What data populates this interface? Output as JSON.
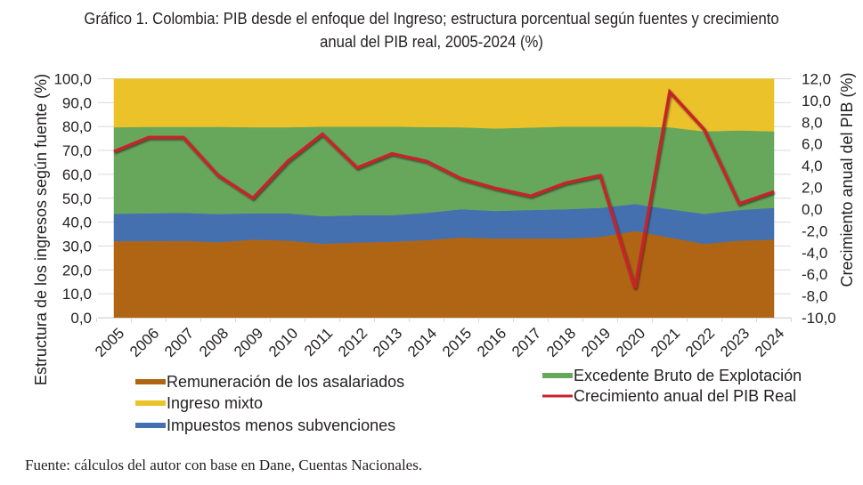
{
  "title": {
    "line1": "Gráfico 1. Colombia: PIB desde el enfoque del Ingreso; estructura porcentual según fuentes y crecimiento",
    "line2": "anual del PIB real, 2005-2024 (%)"
  },
  "source": "Fuente: cálculos del autor con base en Dane, Cuentas Nacionales.",
  "chart_data": {
    "type": "area",
    "title": "Gráfico 1. Colombia: PIB desde el enfoque del Ingreso; estructura porcentual según fuentes y crecimiento anual del PIB real, 2005-2024 (%)",
    "categories": [
      "2005",
      "2006",
      "2007",
      "2008",
      "2009",
      "2010",
      "2011",
      "2012",
      "2013",
      "2014",
      "2015",
      "2016",
      "2017",
      "2018",
      "2019",
      "2020",
      "2021",
      "2022",
      "2023",
      "2024"
    ],
    "ylabel": "Estructura de los ingresos según fuente (%)",
    "y2label": "Crecimiento anual del PIB (%)",
    "ylim": [
      0,
      100
    ],
    "y2lim": [
      -10,
      12
    ],
    "yticks": [
      "0,0",
      "10,0",
      "20,0",
      "30,0",
      "40,0",
      "50,0",
      "60,0",
      "70,0",
      "80,0",
      "90,0",
      "100,0"
    ],
    "y2ticks": [
      "-10,0",
      "-8,0",
      "-6,0",
      "-4,0",
      "-2,0",
      "0,0",
      "2,0",
      "4,0",
      "6,0",
      "8,0",
      "10,0",
      "12,0"
    ],
    "grid": true,
    "stacked": true,
    "series": [
      {
        "name": "Remuneración de los asalariados",
        "kind": "area",
        "axis": "left",
        "color": "#b06515",
        "values": [
          32.0,
          32.1,
          32.2,
          31.6,
          32.7,
          32.3,
          31.0,
          31.5,
          31.8,
          32.5,
          33.6,
          33.2,
          33.2,
          33.2,
          33.8,
          36.3,
          33.6,
          30.9,
          32.3,
          32.7
        ]
      },
      {
        "name": "Impuestos menos subvenciones",
        "kind": "area",
        "axis": "left",
        "color": "#4470b0",
        "values": [
          11.5,
          11.6,
          11.7,
          11.8,
          11.0,
          11.4,
          11.5,
          11.4,
          11.1,
          11.4,
          11.8,
          11.5,
          11.9,
          12.2,
          12.2,
          11.3,
          11.8,
          12.6,
          12.8,
          13.3
        ]
      },
      {
        "name": "Excedente Bruto de Explotación",
        "kind": "area",
        "axis": "left",
        "color": "#67a75c",
        "values": [
          36.2,
          36.2,
          36.0,
          36.5,
          36.0,
          36.0,
          37.5,
          37.1,
          37.1,
          35.9,
          34.3,
          34.5,
          34.5,
          34.6,
          34.0,
          32.4,
          34.3,
          34.5,
          33.3,
          32.0
        ]
      },
      {
        "name": "Ingreso mixto",
        "kind": "area",
        "axis": "left",
        "color": "#ebc22a",
        "values": [
          20.3,
          20.1,
          20.1,
          20.1,
          20.3,
          20.3,
          20.0,
          20.0,
          20.0,
          20.2,
          20.3,
          20.8,
          20.4,
          20.0,
          20.0,
          20.0,
          20.3,
          22.0,
          21.6,
          22.0
        ]
      },
      {
        "name": "Crecimiento anual del PIB Real",
        "kind": "line",
        "axis": "right",
        "color": "#c8202a",
        "values": [
          5.3,
          6.6,
          6.6,
          3.1,
          1.0,
          4.4,
          6.9,
          3.8,
          5.1,
          4.4,
          2.8,
          1.9,
          1.2,
          2.4,
          3.1,
          -7.3,
          10.8,
          7.3,
          0.5,
          1.6
        ]
      }
    ],
    "legend": {
      "placement": "bottom",
      "items": [
        {
          "label": "Remuneración de los asalariados",
          "color": "#b06515",
          "kind": "area"
        },
        {
          "label": "Ingreso mixto",
          "color": "#ebc22a",
          "kind": "area"
        },
        {
          "label": "Impuestos menos subvenciones",
          "color": "#4470b0",
          "kind": "area"
        },
        {
          "label": "Excedente Bruto de Explotación",
          "color": "#67a75c",
          "kind": "area"
        },
        {
          "label": "Crecimiento anual del PIB Real",
          "color": "#c8202a",
          "kind": "line"
        }
      ]
    }
  }
}
